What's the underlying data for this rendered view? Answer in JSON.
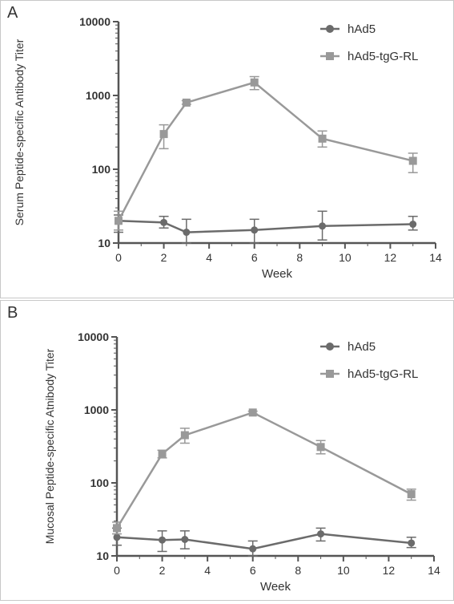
{
  "chart_data": [
    {
      "type": "line",
      "panel_label": "A",
      "xlabel": "Week",
      "ylabel": "Serum Peptide-specific Antibody Titer",
      "xlim": [
        0,
        14
      ],
      "ylim": [
        10,
        10000
      ],
      "yscale": "log",
      "x_ticks": [
        "0",
        "2",
        "4",
        "6",
        "8",
        "10",
        "12",
        "14"
      ],
      "y_ticks": [
        "10",
        "100",
        "1000",
        "10000"
      ],
      "legend_position": "top-right",
      "series": [
        {
          "name": "hAd5",
          "marker": "circle",
          "color": "#6b6b6b",
          "x": [
            0,
            2,
            3,
            6,
            9,
            13
          ],
          "y": [
            20,
            19,
            14,
            15,
            17,
            18
          ],
          "err_low": [
            14,
            16,
            10,
            10,
            11,
            15
          ],
          "err_high": [
            24,
            23,
            21,
            21,
            27,
            23
          ]
        },
        {
          "name": "hAd5-tgG-RL",
          "marker": "square",
          "color": "#999999",
          "x": [
            0,
            2,
            3,
            6,
            9,
            13
          ],
          "y": [
            20,
            300,
            800,
            1500,
            260,
            130
          ],
          "err_low": [
            15,
            190,
            760,
            1200,
            200,
            90
          ],
          "err_high": [
            27,
            400,
            850,
            1800,
            330,
            165
          ]
        }
      ]
    },
    {
      "type": "line",
      "panel_label": "B",
      "xlabel": "Week",
      "ylabel": "Mucosal Peptide-specific Atnibody Titer",
      "xlim": [
        0,
        14
      ],
      "ylim": [
        10,
        10000
      ],
      "yscale": "log",
      "x_ticks": [
        "0",
        "2",
        "4",
        "6",
        "8",
        "10",
        "12",
        "14"
      ],
      "y_ticks": [
        "10",
        "100",
        "1000",
        "10000"
      ],
      "legend_position": "top-right",
      "series": [
        {
          "name": "hAd5",
          "marker": "circle",
          "color": "#6b6b6b",
          "x": [
            0,
            2,
            3,
            6,
            9,
            13
          ],
          "y": [
            18,
            16.5,
            16.8,
            12.5,
            20,
            15
          ],
          "err_low": [
            14,
            11.5,
            12.5,
            10,
            16,
            13
          ],
          "err_high": [
            24,
            22,
            22,
            16,
            24,
            18
          ]
        },
        {
          "name": "hAd5-tgG-RL",
          "marker": "square",
          "color": "#999999",
          "x": [
            0,
            2,
            3,
            6,
            9,
            13
          ],
          "y": [
            24,
            250,
            450,
            920,
            310,
            70
          ],
          "err_low": [
            20,
            220,
            350,
            880,
            250,
            58
          ],
          "err_high": [
            29,
            280,
            560,
            960,
            380,
            82
          ]
        }
      ]
    }
  ]
}
